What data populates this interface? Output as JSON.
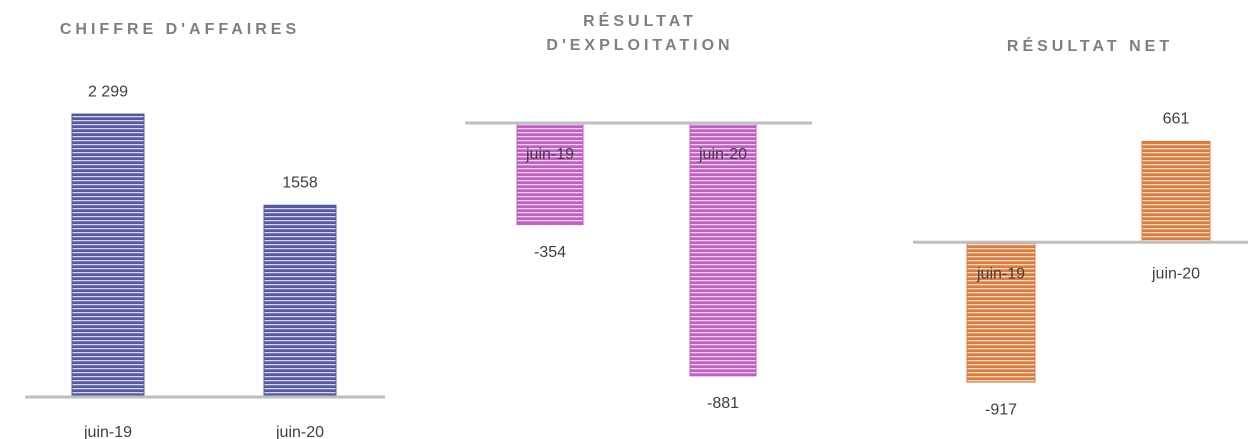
{
  "chart_data": [
    {
      "type": "bar",
      "title": "CHIFFRE D'AFFAIRES",
      "categories": [
        "juin-19",
        "juin-20"
      ],
      "values": [
        2299,
        1558
      ],
      "value_labels": [
        "2 299",
        "1558"
      ],
      "color": "#5557a0",
      "ylim": [
        0,
        2600
      ]
    },
    {
      "type": "bar",
      "title": "RÉSULTAT D'EXPLOITATION",
      "categories": [
        "juin-19",
        "juin-20"
      ],
      "values": [
        -354,
        -881
      ],
      "color": "#c45cc6",
      "ylim": [
        -1000,
        0
      ]
    },
    {
      "type": "bar",
      "title": "RÉSULTAT NET",
      "categories": [
        "juin-19",
        "juin-20"
      ],
      "values": [
        -917,
        661
      ],
      "color": "#e07b3c",
      "ylim": [
        -1100,
        900
      ]
    }
  ]
}
